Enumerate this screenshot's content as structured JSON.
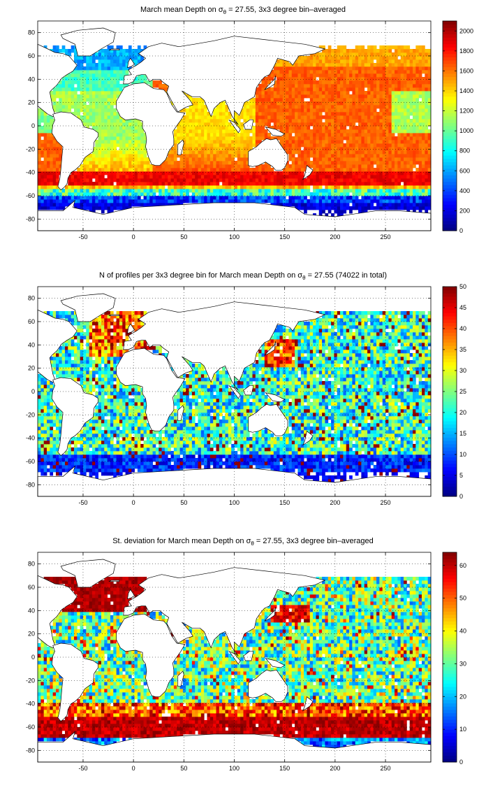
{
  "chart_data": [
    {
      "type": "heatmap",
      "title_pre": "March mean Depth on σ",
      "title_sub": "θ",
      "title_post": " = 27.55, 3x3 degree bin–averaged",
      "xlim": [
        -95,
        295
      ],
      "ylim": [
        -90,
        90
      ],
      "x_ticks": [
        "-50",
        "0",
        "50",
        "100",
        "150",
        "200",
        "250"
      ],
      "x_tick_values": [
        -50,
        0,
        50,
        100,
        150,
        200,
        250
      ],
      "y_ticks": [
        "80",
        "60",
        "40",
        "20",
        "0",
        "-20",
        "-40",
        "-60",
        "-80"
      ],
      "y_tick_values": [
        80,
        60,
        40,
        20,
        0,
        -20,
        -40,
        -60,
        -80
      ],
      "grid": true,
      "colorbar": {
        "range": [
          0,
          2100
        ],
        "ticks": [
          "2000",
          "1800",
          "1600",
          "1400",
          "1200",
          "1000",
          "800",
          "600",
          "400",
          "200",
          "0"
        ],
        "tick_values": [
          2000,
          1800,
          1600,
          1400,
          1200,
          1000,
          800,
          600,
          400,
          200,
          0
        ]
      }
    },
    {
      "type": "heatmap",
      "title_pre": "N of profiles per 3x3 degree bin for March mean Depth on σ",
      "title_sub": "θ",
      "title_post": " = 27.55 (74022 in total)",
      "xlim": [
        -95,
        295
      ],
      "ylim": [
        -90,
        90
      ],
      "x_ticks": [
        "-50",
        "0",
        "50",
        "100",
        "150",
        "200",
        "250"
      ],
      "x_tick_values": [
        -50,
        0,
        50,
        100,
        150,
        200,
        250
      ],
      "y_ticks": [
        "80",
        "60",
        "40",
        "20",
        "0",
        "-20",
        "-40",
        "-60",
        "-80"
      ],
      "y_tick_values": [
        80,
        60,
        40,
        20,
        0,
        -20,
        -40,
        -60,
        -80
      ],
      "grid": true,
      "colorbar": {
        "range": [
          0,
          50
        ],
        "ticks": [
          "50",
          "45",
          "40",
          "35",
          "30",
          "25",
          "20",
          "15",
          "10",
          "5",
          "0"
        ],
        "tick_values": [
          50,
          45,
          40,
          35,
          30,
          25,
          20,
          15,
          10,
          5,
          0
        ]
      }
    },
    {
      "type": "heatmap",
      "title_pre": "St. deviation for March mean Depth on σ",
      "title_sub": "θ",
      "title_post": " = 27.55, 3x3 degree bin–averaged",
      "xlim": [
        -95,
        295
      ],
      "ylim": [
        -90,
        90
      ],
      "x_ticks": [
        "-50",
        "0",
        "50",
        "100",
        "150",
        "200",
        "250"
      ],
      "x_tick_values": [
        -50,
        0,
        50,
        100,
        150,
        200,
        250
      ],
      "y_ticks": [
        "80",
        "60",
        "40",
        "20",
        "0",
        "-20",
        "-40",
        "-60",
        "-80"
      ],
      "y_tick_values": [
        80,
        60,
        40,
        20,
        0,
        -20,
        -40,
        -60,
        -80
      ],
      "grid": true,
      "colorbar": {
        "range": [
          0,
          64
        ],
        "ticks": [
          "60",
          "50",
          "40",
          "30",
          "20",
          "10",
          "0"
        ],
        "tick_values": [
          60,
          50,
          40,
          30,
          20,
          10,
          0
        ]
      }
    }
  ]
}
